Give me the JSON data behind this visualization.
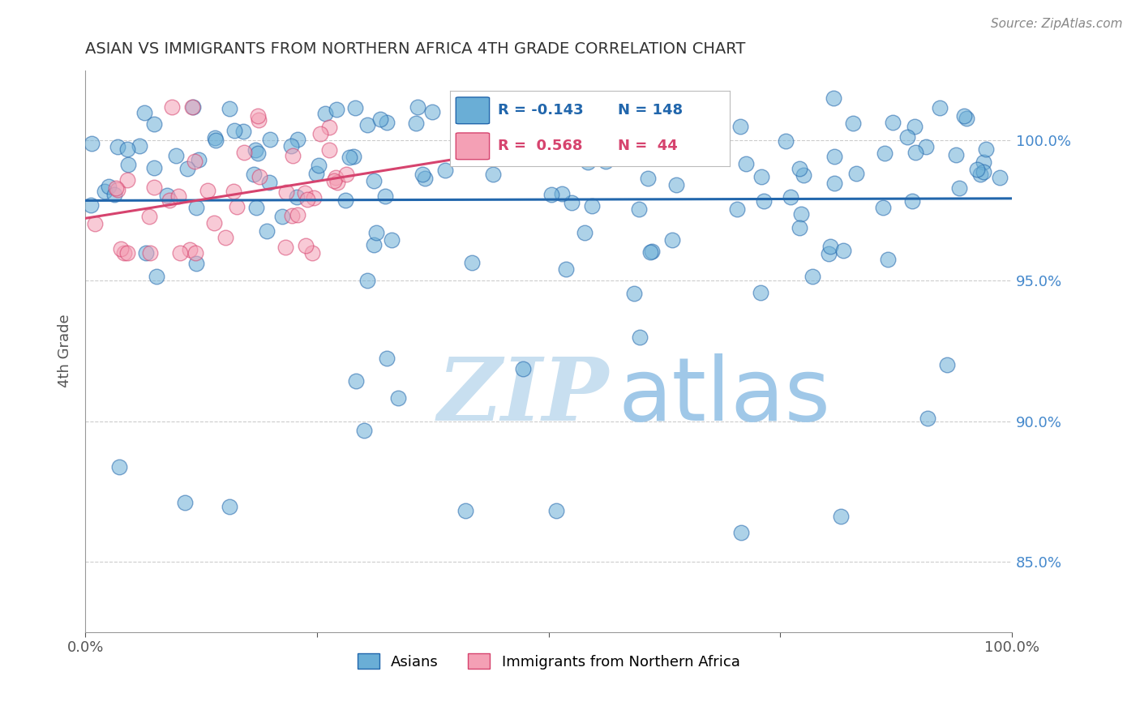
{
  "title": "ASIAN VS IMMIGRANTS FROM NORTHERN AFRICA 4TH GRADE CORRELATION CHART",
  "source": "Source: ZipAtlas.com",
  "ylabel": "4th Grade",
  "ytick_labels": [
    "85.0%",
    "90.0%",
    "95.0%",
    "100.0%"
  ],
  "ytick_values": [
    0.85,
    0.9,
    0.95,
    1.0
  ],
  "xlim": [
    0.0,
    1.0
  ],
  "ylim": [
    0.825,
    1.025
  ],
  "legend_blue_r": "R = -0.143",
  "legend_blue_n": "N = 148",
  "legend_pink_r": "R =  0.568",
  "legend_pink_n": "N =  44",
  "blue_color": "#6aaed6",
  "blue_line_color": "#2166ac",
  "pink_color": "#f4a0b5",
  "pink_line_color": "#d6436e",
  "watermark_zip": "ZIP",
  "watermark_atlas": "atlas",
  "watermark_color_zip": "#c8dff0",
  "watermark_color_atlas": "#a0c8e8",
  "background_color": "#ffffff",
  "grid_color": "#cccccc",
  "title_color": "#333333",
  "axis_label_color": "#555555",
  "right_axis_color": "#4488cc",
  "seed": 42,
  "blue_n": 148,
  "pink_n": 44,
  "blue_intercept": 0.988,
  "blue_slope": -0.012,
  "pink_intercept": 0.972,
  "pink_slope": 0.045
}
